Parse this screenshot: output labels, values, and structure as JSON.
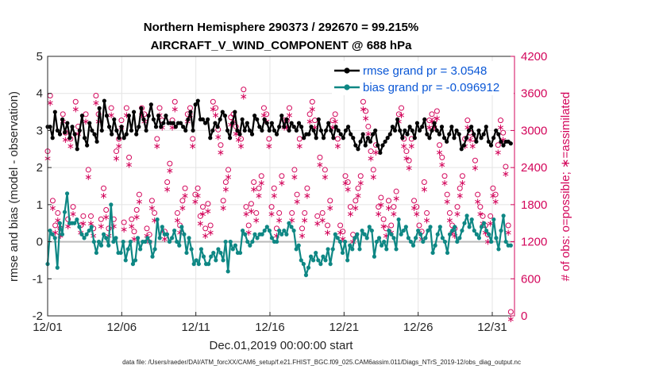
{
  "chart_data": {
    "type": "line",
    "title_line1": "Northern Hemisphere 290373 / 292670 = 99.215%",
    "title_line2": "AIRCRAFT_V_WIND_COMPONENT @ 688 hPa",
    "xlabel": "Dec.01,2019 00:00:00 start",
    "ylabel_left": "rmse and bias (model - observation)",
    "ylabel_right": "# of obs: o=possible; ∗=assimilated",
    "footer": "data file: /Users/raeder/DAI/ATM_forcXX/CAM6_setup/f.e21.FHIST_BGC.f09_025.CAM6assim.011/Diags_NTrS_2019-12/obs_diag_output.nc",
    "x_ticks": [
      "12/01",
      "12/06",
      "12/11",
      "12/16",
      "12/21",
      "12/26",
      "12/31"
    ],
    "xlim": [
      0,
      31.5
    ],
    "ylim_left": [
      -2,
      5
    ],
    "yticks_left": [
      "-2",
      "-1",
      "0",
      "1",
      "2",
      "3",
      "4",
      "5"
    ],
    "ylim_right": [
      0,
      4200
    ],
    "yticks_right": [
      "0",
      "600",
      "1200",
      "1800",
      "2400",
      "3000",
      "3600",
      "4200"
    ],
    "colors": {
      "rmse": "#000000",
      "bias": "#0e8784",
      "obs": "#d3065b",
      "legend_text": "#0a57d6",
      "zero_line": "#bbbbbb",
      "grid": "#e4e4e4"
    },
    "series": [
      {
        "name": "rmse grand pr = 3.0548",
        "values": [
          3.1,
          3.1,
          2.8,
          3.5,
          3.0,
          2.9,
          3.3,
          2.95,
          3.2,
          2.8,
          3.1,
          2.9,
          2.5,
          3.0,
          3.4,
          2.8,
          2.6,
          3.2,
          3.0,
          2.9,
          2.7,
          3.6,
          3.0,
          3.8,
          3.4,
          3.1,
          2.9,
          3.3,
          3.0,
          2.8,
          3.1,
          2.8,
          2.9,
          3.4,
          3.0,
          3.5,
          2.9,
          3.1,
          3.6,
          3.3,
          3.0,
          3.4,
          3.7,
          3.3,
          3.1,
          3.4,
          3.1,
          3.2,
          3.4,
          3.2,
          3.2,
          3.2,
          3.1,
          3.2,
          3.2,
          3.1,
          3.0,
          3.3,
          3.5,
          3.0,
          3.7,
          3.8,
          3.3,
          3.3,
          3.2,
          3.3,
          2.8,
          3.0,
          3.2,
          3.1,
          3.3,
          3.5,
          3.4,
          3.0,
          2.8,
          3.2,
          3.5,
          3.0,
          2.9,
          3.3,
          3.0,
          3.2,
          3.0,
          2.9,
          3.4,
          3.3,
          3.1,
          3.0,
          3.3,
          3.2,
          3.0,
          3.2,
          3.0,
          2.9,
          3.1,
          3.4,
          3.1,
          3.3,
          3.0,
          3.2,
          3.1,
          3.0,
          3.2,
          3.1,
          2.8,
          2.9,
          2.9,
          3.1,
          3.0,
          2.8,
          3.3,
          3.0,
          2.8,
          3.0,
          3.2,
          3.0,
          2.8,
          3.1,
          3.0,
          2.9,
          2.8,
          3.0,
          3.1,
          2.9,
          2.8,
          2.6,
          2.5,
          2.7,
          2.9,
          2.6,
          2.8,
          2.7,
          2.9,
          3.0,
          2.6,
          2.4,
          2.6,
          2.7,
          2.8,
          2.9,
          3.1,
          3.0,
          3.3,
          3.0,
          2.8,
          3.0,
          2.9,
          3.1,
          3.0,
          2.8,
          3.2,
          3.0,
          3.1,
          3.3,
          2.9,
          2.8,
          3.0,
          3.2,
          3.0,
          2.9,
          3.1,
          2.8,
          2.7,
          2.9,
          3.1,
          2.8,
          3.0,
          2.9,
          2.5,
          2.6,
          2.8,
          3.0,
          3.1,
          2.9,
          2.7,
          3.0,
          2.8,
          2.9,
          3.1,
          2.7,
          2.6,
          2.8,
          3.0,
          2.9,
          2.7,
          2.6,
          2.7,
          2.7,
          2.65
        ]
      },
      {
        "name": "bias grand pr = -0.096912",
        "values": [
          -0.6,
          0.3,
          0.2,
          0.1,
          -0.7,
          0.5,
          0.2,
          0.8,
          1.3,
          0.5,
          0.5,
          0.5,
          0.6,
          0.4,
          0.2,
          0.1,
          0.2,
          0.3,
          0.4,
          0.0,
          -0.3,
          0.0,
          -0.1,
          0.2,
          0.1,
          -0.1,
          1.0,
          0.0,
          0.1,
          -0.3,
          -0.3,
          0.0,
          -0.5,
          -0.2,
          0.0,
          -0.6,
          -0.5,
          0.1,
          -0.2,
          0.0,
          0.0,
          0.1,
          0.0,
          -0.4,
          -0.2,
          0.6,
          0.1,
          0.4,
          0.2,
          0.2,
          0.0,
          0.1,
          0.3,
          0.0,
          -0.1,
          0.4,
          0.2,
          -0.3,
          0.1,
          -0.2,
          -0.6,
          -0.5,
          -0.6,
          -0.2,
          -0.4,
          -0.6,
          -0.6,
          -0.4,
          -0.3,
          -0.5,
          -0.2,
          -0.3,
          -0.5,
          0.0,
          -0.8,
          0.0,
          -0.2,
          -0.1,
          -0.3,
          -0.3,
          0.3,
          0.2,
          0.0,
          -0.1,
          0.0,
          0.2,
          0.1,
          0.2,
          0.2,
          0.3,
          0.4,
          0.3,
          0.1,
          0.0,
          0.0,
          0.3,
          0.2,
          0.3,
          0.2,
          0.5,
          0.4,
          0.3,
          -0.2,
          -0.1,
          -0.5,
          -0.6,
          -0.9,
          -0.7,
          -0.4,
          -0.5,
          -0.3,
          -0.5,
          -0.6,
          -0.4,
          -0.5,
          -0.2,
          -0.6,
          -0.2,
          0.2,
          0.1,
          0.0,
          -0.3,
          0.0,
          -0.5,
          -0.1,
          -0.2,
          0.1,
          0.2,
          -0.2,
          0.3,
          0.2,
          0.1,
          0.4,
          0.3,
          -0.4,
          0.0,
          0.1,
          -0.1,
          0.0,
          -0.2,
          0.3,
          0.2,
          0.1,
          -0.2,
          0.6,
          0.2,
          0.3,
          0.4,
          0.1,
          0.0,
          -0.1,
          0.1,
          0.3,
          0.2,
          0.0,
          0.1,
          0.3,
          0.4,
          -0.3,
          -0.1,
          0.2,
          0.4,
          0.1,
          0.0,
          -0.3,
          0.2,
          0.3,
          0.4,
          0.0,
          0.1,
          0.3,
          0.5,
          0.7,
          0.4,
          0.6,
          0.3,
          0.2,
          0.1,
          0.4,
          0.5,
          0.3,
          0.2,
          0.0,
          0.6,
          0.1,
          -0.2,
          0.3,
          0.7,
          0.0,
          -0.1,
          -0.1
        ]
      }
    ],
    "obs_series": {
      "name": "# of obs",
      "values": [
        2600,
        3500,
        1800,
        1400,
        1600,
        1350,
        3200,
        2900,
        1500,
        2800,
        1700,
        3400,
        3000,
        1400,
        1550,
        3200,
        2300,
        1550,
        1350,
        3500,
        3200,
        1500,
        2000,
        1650,
        1350,
        3300,
        1500,
        2600,
        2800,
        3100,
        1450,
        3300,
        2500,
        1500,
        1300,
        1650,
        1900,
        3300,
        3200,
        1350,
        1250,
        1800,
        1600,
        2800,
        3300,
        3100,
        1300,
        2100,
        2400,
        3100,
        3400,
        1600,
        1400,
        1800,
        2000,
        3200,
        3300,
        2800,
        1900,
        2000,
        1550,
        1700,
        1350,
        1750,
        1400,
        3400,
        3300,
        2950,
        2700,
        1800,
        2100,
        2300,
        3150,
        3200,
        3000,
        2900,
        2800,
        3600,
        1700,
        1400,
        1750,
        2100,
        1600,
        2000,
        2200,
        3300,
        3200,
        2800,
        1700,
        2000,
        1350,
        1600,
        2200,
        3100,
        3100,
        3300,
        1600,
        2300,
        1900,
        2800,
        1350,
        1600,
        2000,
        3200,
        3400,
        3100,
        1550,
        2500,
        1600,
        2300,
        1400,
        1800,
        3100,
        3200,
        2800,
        1400,
        1300,
        2200,
        2100,
        1700,
        1250,
        1800,
        2000,
        2200,
        3400,
        3250,
        3000,
        2600,
        2300,
        2700,
        1700,
        1850,
        1500,
        1350,
        1800,
        1400,
        1700,
        1950,
        3200,
        3300,
        2800,
        2600,
        2450,
        2800,
        1800,
        1700,
        1400,
        1300,
        2100,
        1600,
        3100,
        3200,
        3100,
        3250,
        2700,
        2500,
        2200,
        1900,
        1600,
        1400,
        1350,
        1700,
        2000,
        2200,
        2800,
        3100,
        2900,
        2800,
        2450,
        1900,
        1700,
        1550,
        1400,
        1250,
        1550,
        2000,
        1900,
        2700,
        3100,
        2900,
        2350,
        1400,
        0
      ]
    }
  }
}
